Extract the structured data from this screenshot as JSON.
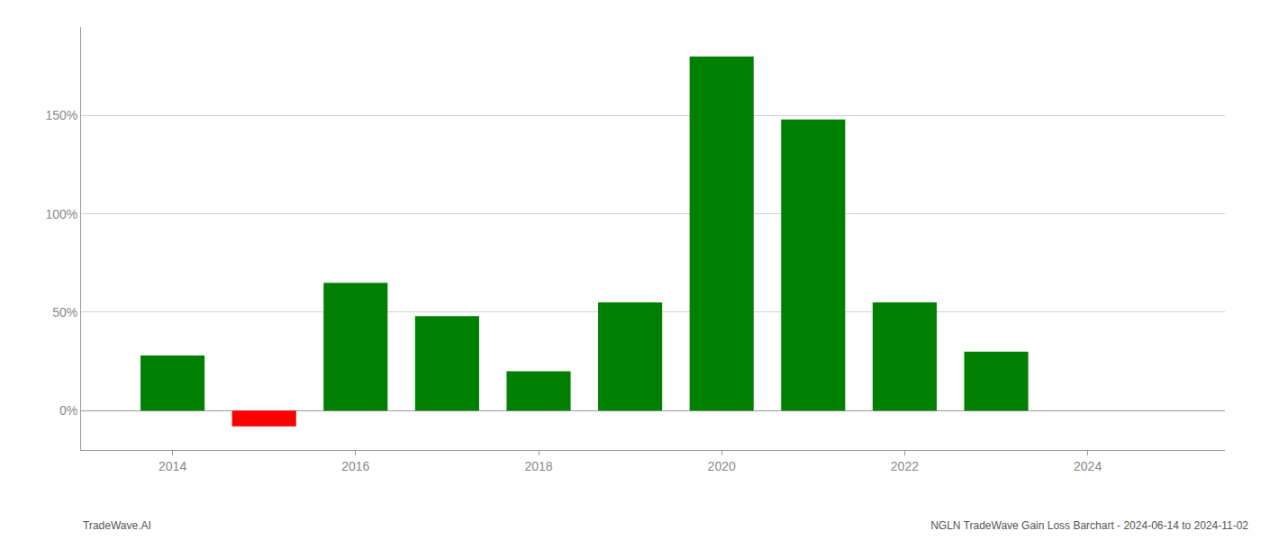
{
  "chart_data": {
    "type": "bar",
    "title": "NGLN TradeWave Gain Loss Barchart - 2024-06-14 to 2024-11-02",
    "annotations": [
      "TradeWave.AI"
    ],
    "x": [
      2014,
      2015,
      2016,
      2017,
      2018,
      2019,
      2020,
      2021,
      2022,
      2023
    ],
    "values": [
      28,
      -8,
      65,
      48,
      20,
      55,
      180,
      148,
      55,
      30
    ],
    "colors": [
      "#008000",
      "#ff0000",
      "#008000",
      "#008000",
      "#008000",
      "#008000",
      "#008000",
      "#008000",
      "#008000",
      "#008000"
    ],
    "xlim": [
      2013.0,
      2025.5
    ],
    "xticks": [
      2014,
      2016,
      2018,
      2020,
      2022,
      2024
    ],
    "ylim": [
      -20,
      195
    ],
    "yticks": [
      {
        "value": 0,
        "label": "0%"
      },
      {
        "value": 50,
        "label": "50%"
      },
      {
        "value": 100,
        "label": "100%"
      },
      {
        "value": 150,
        "label": "150%"
      }
    ],
    "grid": true
  }
}
